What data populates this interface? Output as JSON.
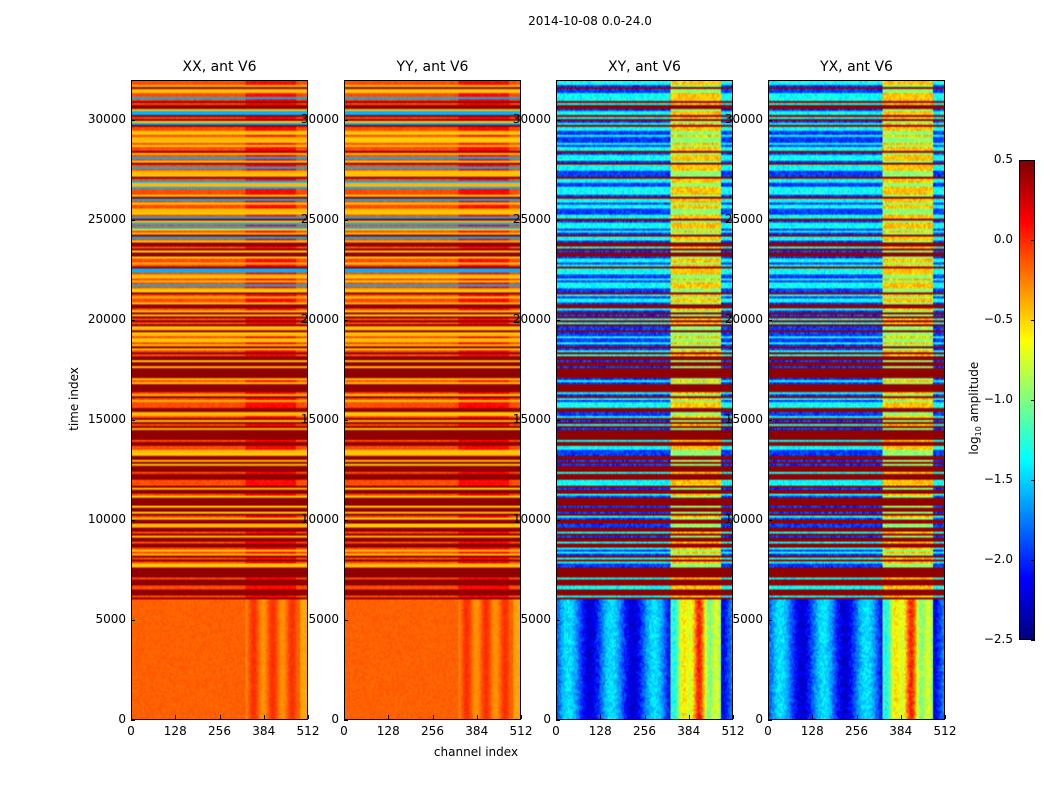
{
  "suptitle": "2014-10-08 0.0-24.0",
  "chart_data": {
    "type": "heatmap",
    "title": "2014-10-08 0.0-24.0",
    "xlabel": "channel index",
    "ylabel": "time index",
    "xlim": [
      0,
      512
    ],
    "ylim": [
      0,
      32000
    ],
    "xticks": [
      "0",
      "128",
      "256",
      "384",
      "512"
    ],
    "yticks": [
      "0",
      "5000",
      "10000",
      "15000",
      "20000",
      "25000",
      "30000"
    ],
    "panels": [
      {
        "title": "XX, ant V6",
        "kind": "auto"
      },
      {
        "title": "YY, ant V6",
        "kind": "auto"
      },
      {
        "title": "XY, ant V6",
        "kind": "cross"
      },
      {
        "title": "YX, ant V6",
        "kind": "cross"
      }
    ],
    "colorbar": {
      "label": "log10 amplitude",
      "label_base": "log",
      "label_sub": "10",
      "label_rest": " amplitude",
      "range": [
        -2.5,
        0.5
      ],
      "ticks": [
        "0.5",
        "0.0",
        "−0.5",
        "−1.0",
        "−1.5",
        "−2.0",
        "−2.5"
      ],
      "colormap": "jet"
    }
  }
}
